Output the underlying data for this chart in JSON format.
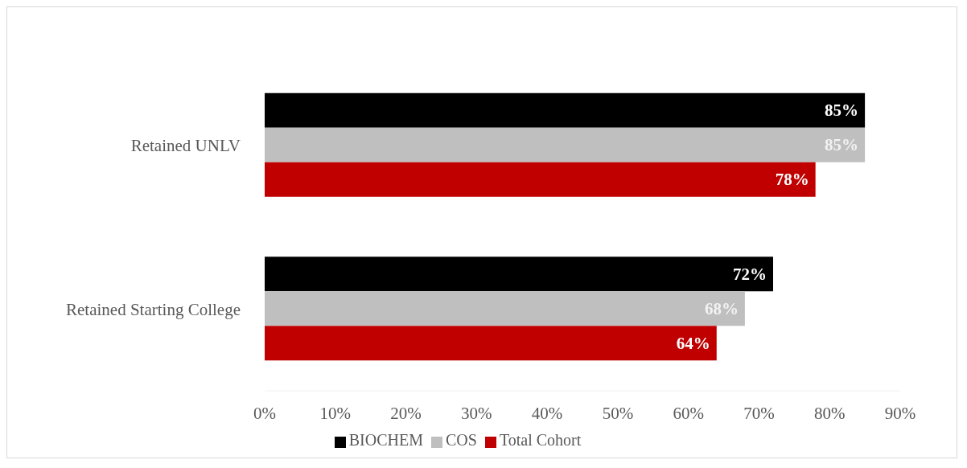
{
  "chart_data": {
    "type": "bar",
    "orientation": "horizontal",
    "categories": [
      "Retained UNLV",
      "Retained Starting College"
    ],
    "series": [
      {
        "name": "BIOCHEM",
        "color": "#000000",
        "values": [
          85,
          72
        ],
        "value_labels": [
          "85%",
          "72%"
        ]
      },
      {
        "name": "COS",
        "color": "#bfbfbf",
        "values": [
          85,
          68
        ],
        "value_labels": [
          "85%",
          "68%"
        ]
      },
      {
        "name": "Total Cohort",
        "color": "#c00000",
        "values": [
          78,
          64
        ],
        "value_labels": [
          "78%",
          "64%"
        ]
      }
    ],
    "xlim": [
      0,
      90
    ],
    "xticks": [
      {
        "value": 0,
        "label": "0%"
      },
      {
        "value": 10,
        "label": "10%"
      },
      {
        "value": 20,
        "label": "20%"
      },
      {
        "value": 30,
        "label": "30%"
      },
      {
        "value": 40,
        "label": "40%"
      },
      {
        "value": 50,
        "label": "50%"
      },
      {
        "value": 60,
        "label": "60%"
      },
      {
        "value": 70,
        "label": "70%"
      },
      {
        "value": 80,
        "label": "80%"
      },
      {
        "value": 90,
        "label": "90%"
      }
    ],
    "grid": false,
    "legend": "bottom"
  }
}
